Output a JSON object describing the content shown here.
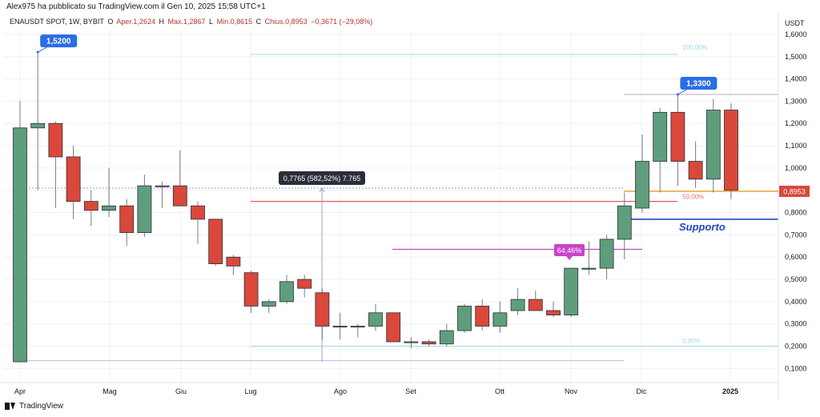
{
  "header": {
    "publisher_text": "Alex975 ha pubblicato su TradingView.com il Gen 10, 2025 15:58 UTC+1",
    "symbol": "ENAUSDT SPOT, 1W, BYBIT",
    "open_label": "O",
    "open_value": "Aper.1,2624",
    "high_label": "H",
    "high_value": "Max.1,2867",
    "low_label": "L",
    "low_value": "Min.0,8615",
    "close_label": "C",
    "close_value": "Chius.0,8953",
    "change_value": "−0,3671 (−29,08%)"
  },
  "footer": {
    "brand": "TradingView"
  },
  "colors": {
    "up": "#5f9e7c",
    "down": "#d9483b",
    "wick": "#787b86",
    "grid": "#eef0f3",
    "price_label": "#d9483b",
    "support": "#2146c2",
    "resistance": "#e25a5a",
    "purple": "#c644c8",
    "fib_cyan": "#9fd9e6",
    "orange": "#f0a020",
    "callout": "#2a6de6",
    "measure_box": "#2a2e39"
  },
  "chart_data": {
    "type": "candlestick",
    "currency": "USDT",
    "ylim": [
      0.05,
      1.65
    ],
    "yticks": [
      "0,1000",
      "0,2000",
      "0,3000",
      "0,4000",
      "0,5000",
      "0,6000",
      "0,7000",
      "0,8000",
      "0,9000",
      "1,0000",
      "1,1000",
      "1,2000",
      "1,3000",
      "1,4000",
      "1,5000",
      "1,6000"
    ],
    "xlabels": [
      "Apr",
      "Mag",
      "Giu",
      "Lug",
      "Ago",
      "Set",
      "Ott",
      "Nov",
      "Dic",
      "2025"
    ],
    "candles": [
      {
        "o": 0.13,
        "h": 1.3,
        "l": 0.13,
        "c": 1.18
      },
      {
        "o": 1.18,
        "h": 1.52,
        "l": 0.9,
        "c": 1.2
      },
      {
        "o": 1.2,
        "h": 1.21,
        "l": 0.82,
        "c": 1.05
      },
      {
        "o": 1.05,
        "h": 1.1,
        "l": 0.77,
        "c": 0.85
      },
      {
        "o": 0.85,
        "h": 0.9,
        "l": 0.74,
        "c": 0.81
      },
      {
        "o": 0.81,
        "h": 1.0,
        "l": 0.78,
        "c": 0.83
      },
      {
        "o": 0.83,
        "h": 0.86,
        "l": 0.65,
        "c": 0.71
      },
      {
        "o": 0.71,
        "h": 0.97,
        "l": 0.69,
        "c": 0.92
      },
      {
        "o": 0.92,
        "h": 0.94,
        "l": 0.82,
        "c": 0.92
      },
      {
        "o": 0.92,
        "h": 1.08,
        "l": 0.83,
        "c": 0.83
      },
      {
        "o": 0.83,
        "h": 0.85,
        "l": 0.66,
        "c": 0.77
      },
      {
        "o": 0.77,
        "h": 0.77,
        "l": 0.56,
        "c": 0.57
      },
      {
        "o": 0.6,
        "h": 0.61,
        "l": 0.52,
        "c": 0.56
      },
      {
        "o": 0.53,
        "h": 0.54,
        "l": 0.35,
        "c": 0.38
      },
      {
        "o": 0.38,
        "h": 0.41,
        "l": 0.35,
        "c": 0.4
      },
      {
        "o": 0.4,
        "h": 0.52,
        "l": 0.39,
        "c": 0.49
      },
      {
        "o": 0.5,
        "h": 0.52,
        "l": 0.42,
        "c": 0.46
      },
      {
        "o": 0.44,
        "h": 0.46,
        "l": 0.23,
        "c": 0.29
      },
      {
        "o": 0.29,
        "h": 0.35,
        "l": 0.23,
        "c": 0.29
      },
      {
        "o": 0.29,
        "h": 0.3,
        "l": 0.24,
        "c": 0.29
      },
      {
        "o": 0.29,
        "h": 0.39,
        "l": 0.27,
        "c": 0.35
      },
      {
        "o": 0.35,
        "h": 0.35,
        "l": 0.22,
        "c": 0.22
      },
      {
        "o": 0.22,
        "h": 0.24,
        "l": 0.19,
        "c": 0.22
      },
      {
        "o": 0.22,
        "h": 0.23,
        "l": 0.2,
        "c": 0.21
      },
      {
        "o": 0.21,
        "h": 0.3,
        "l": 0.2,
        "c": 0.27
      },
      {
        "o": 0.27,
        "h": 0.39,
        "l": 0.26,
        "c": 0.38
      },
      {
        "o": 0.38,
        "h": 0.41,
        "l": 0.27,
        "c": 0.29
      },
      {
        "o": 0.29,
        "h": 0.4,
        "l": 0.26,
        "c": 0.35
      },
      {
        "o": 0.36,
        "h": 0.46,
        "l": 0.34,
        "c": 0.41
      },
      {
        "o": 0.41,
        "h": 0.45,
        "l": 0.36,
        "c": 0.36
      },
      {
        "o": 0.36,
        "h": 0.4,
        "l": 0.33,
        "c": 0.34
      },
      {
        "o": 0.34,
        "h": 0.55,
        "l": 0.33,
        "c": 0.55
      },
      {
        "o": 0.55,
        "h": 0.67,
        "l": 0.52,
        "c": 0.55
      },
      {
        "o": 0.55,
        "h": 0.7,
        "l": 0.5,
        "c": 0.68
      },
      {
        "o": 0.68,
        "h": 0.89,
        "l": 0.59,
        "c": 0.83
      },
      {
        "o": 0.82,
        "h": 1.15,
        "l": 0.8,
        "c": 1.03
      },
      {
        "o": 1.03,
        "h": 1.27,
        "l": 0.89,
        "c": 1.25
      },
      {
        "o": 1.25,
        "h": 1.33,
        "l": 0.92,
        "c": 1.03
      },
      {
        "o": 1.03,
        "h": 1.12,
        "l": 0.91,
        "c": 0.95
      },
      {
        "o": 0.95,
        "h": 1.31,
        "l": 0.89,
        "c": 1.26
      },
      {
        "o": 1.26,
        "h": 1.29,
        "l": 0.86,
        "c": 0.9
      }
    ],
    "current_price_label": "0,8953",
    "current_price": 0.8953,
    "callouts": [
      {
        "label": "1,5200",
        "price": 1.52,
        "candle": 1
      },
      {
        "label": "1,3300",
        "price": 1.33,
        "candle": 37
      }
    ],
    "annotations": {
      "support_label": "Supporto",
      "support_price": 0.77,
      "resistance_price": 0.85,
      "purple_level_price": 0.635,
      "purple_label": "64,46%",
      "measure_label": "0,7765 (582,52%) 7.765",
      "measure_from": 0.13,
      "measure_to": 0.91,
      "fib_100_label": "100,00%",
      "fib_100_price": 1.51,
      "fib_50_label": "50,00%",
      "fib_50_price": 0.85,
      "fib_0_label": "0,00%",
      "fib_0_price": 0.2,
      "dotted_price": 0.91,
      "low_line_price": 0.135,
      "peak_line_price": 1.33
    }
  }
}
